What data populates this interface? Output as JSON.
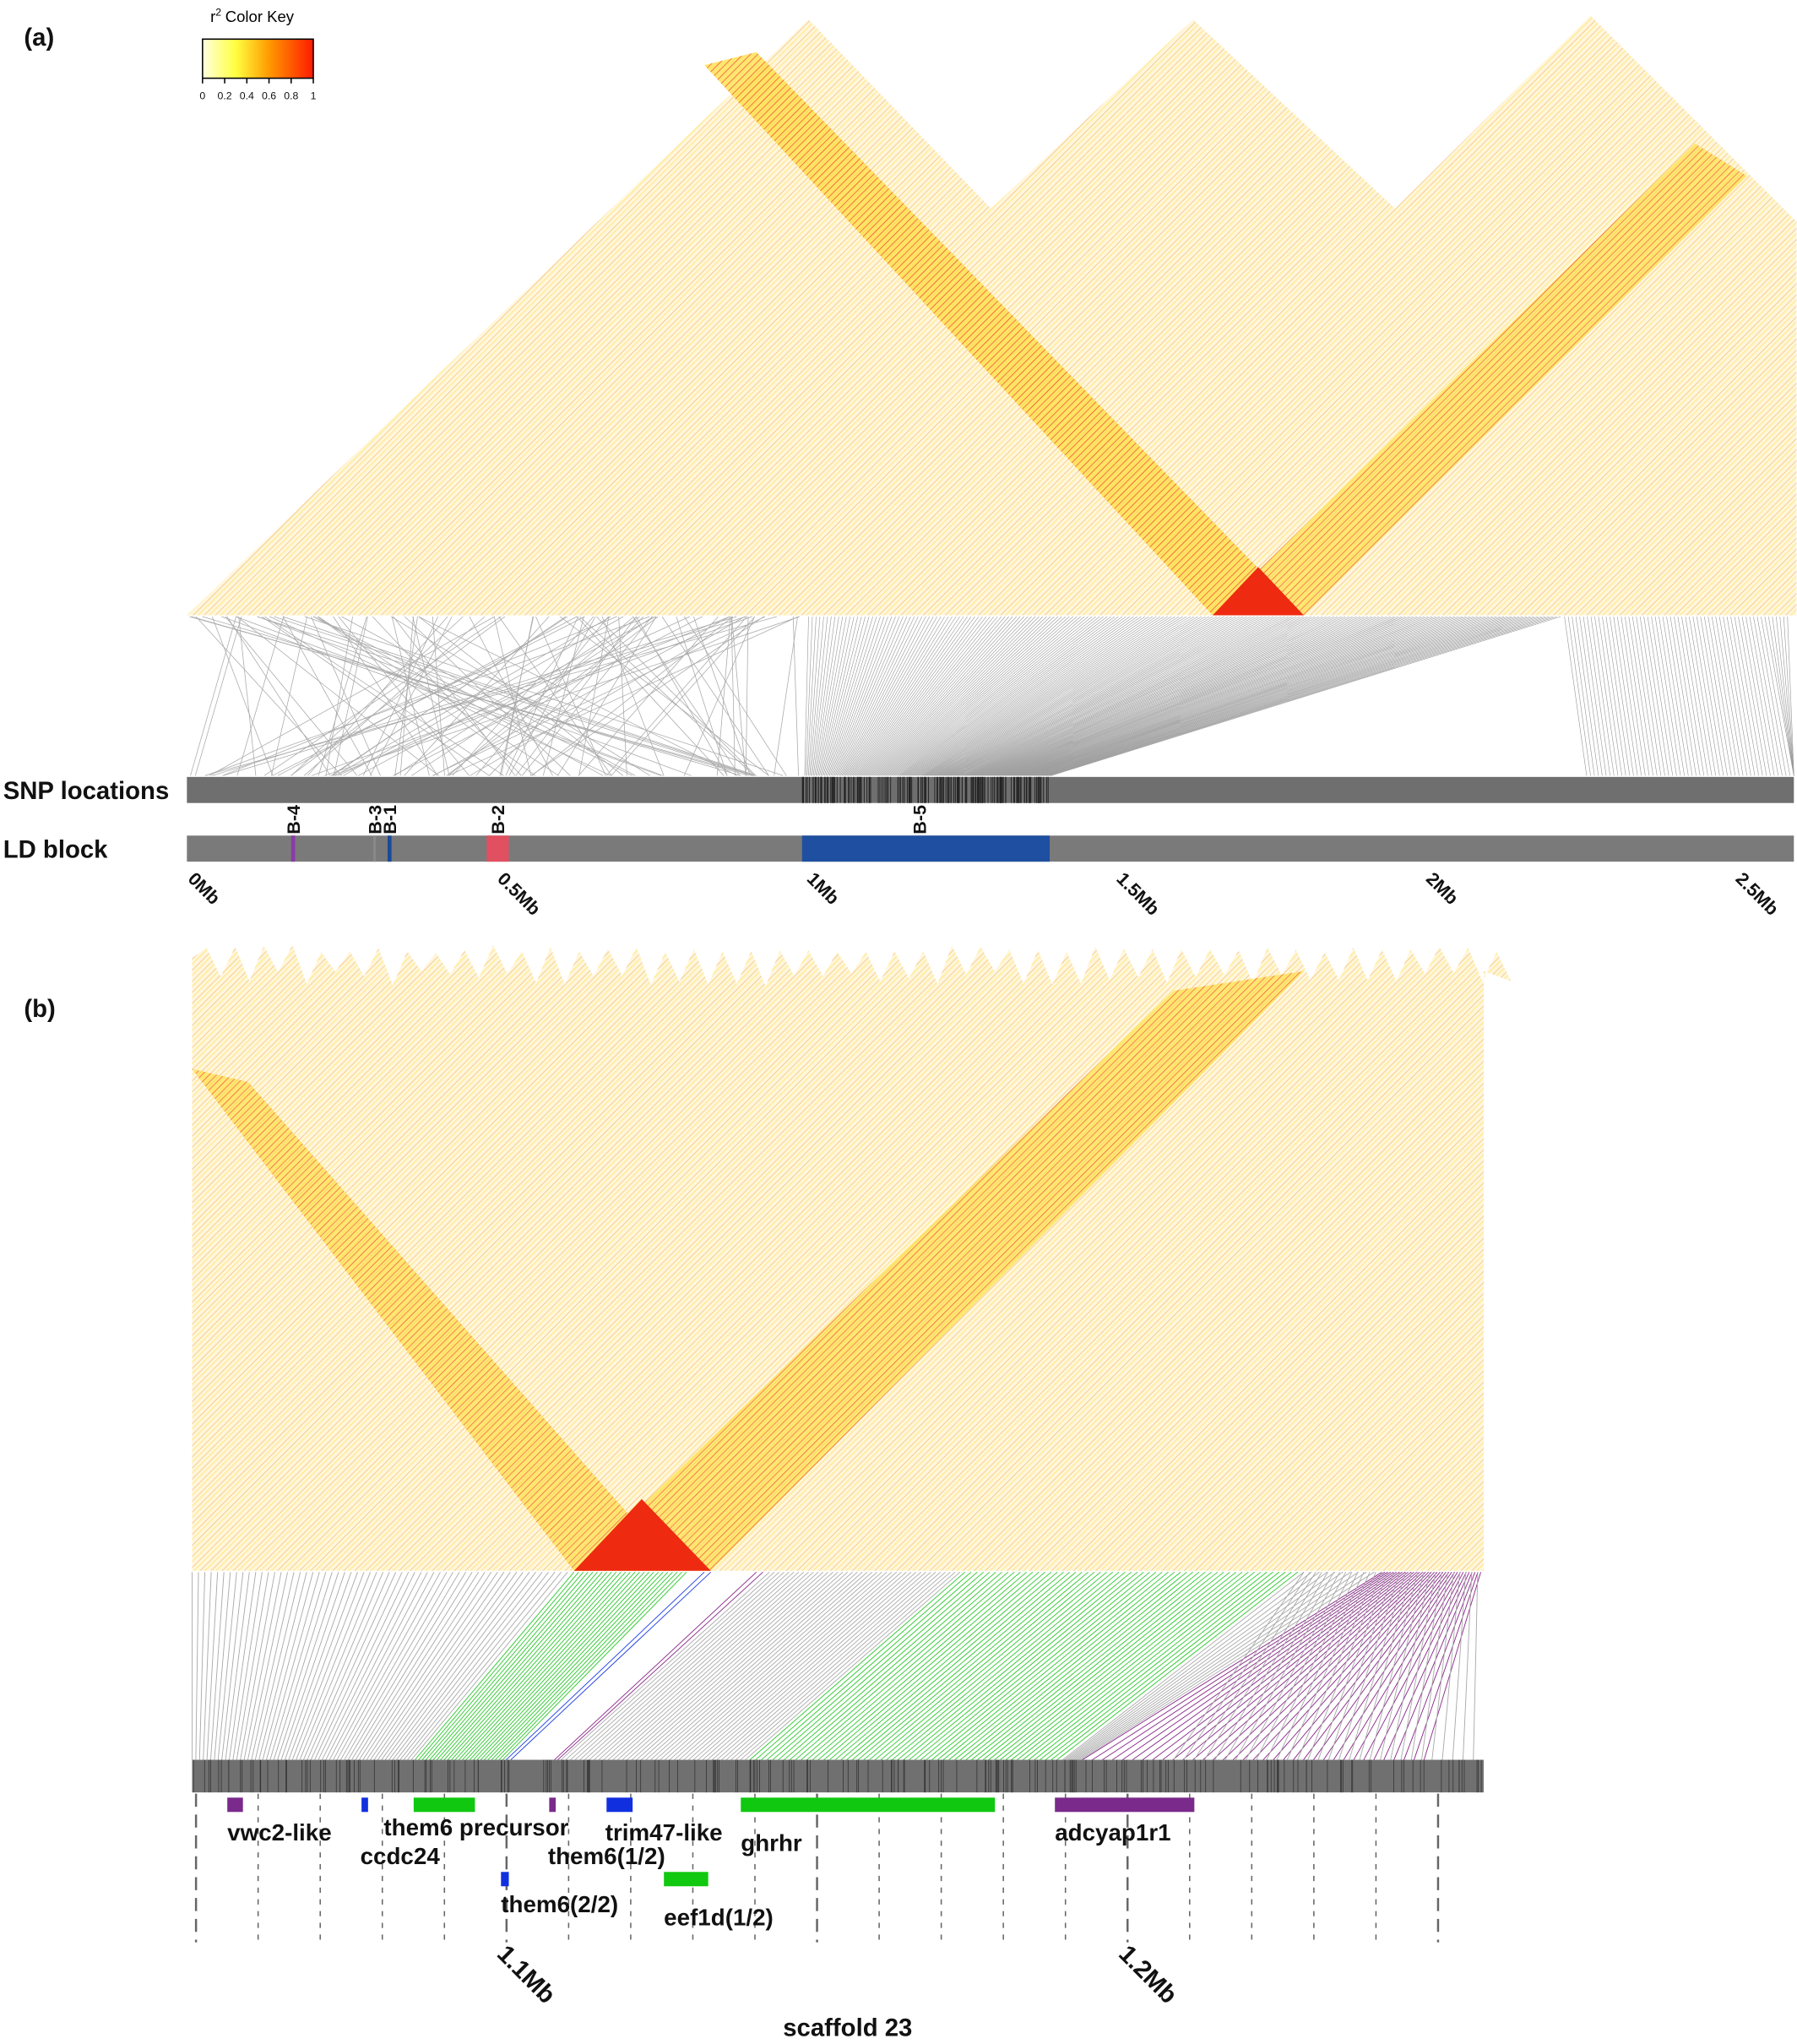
{
  "panel_a": {
    "label": "(a)",
    "color_key": {
      "r": "r",
      "sup": "2",
      "title": "Color Key",
      "ticks": [
        "0",
        "0.2",
        "0.4",
        "0.6",
        "0.8",
        "1"
      ]
    },
    "tracks": [
      "SNP locations",
      "LD block"
    ],
    "blocks": [
      "B-4",
      "B-3",
      "B-1",
      "B-2",
      "B-5"
    ],
    "axis": [
      "0Mb",
      "0.5Mb",
      "1Mb",
      "1.5Mb",
      "2Mb",
      "2.5Mb"
    ]
  },
  "panel_b": {
    "label": "(b)",
    "genes": [
      "vwc2-like",
      "ccdc24",
      "them6 precursor",
      "them6(1/2)",
      "trim47-like",
      "ghrhr",
      "adcyap1r1",
      "them6(2/2)",
      "eef1d(1/2)"
    ],
    "axis": [
      "1.1Mb",
      "1.2Mb"
    ],
    "xlabel": "scaffold 23"
  }
}
